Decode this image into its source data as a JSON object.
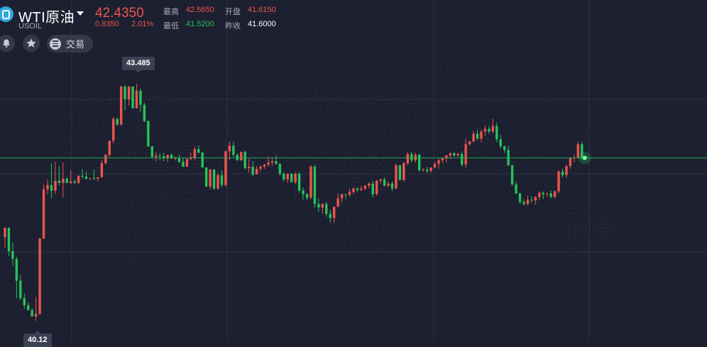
{
  "header": {
    "name": "WTI原油",
    "symbol": "USOIL",
    "price": "42.4350",
    "change": "0.8350",
    "change_pct": "2.01%",
    "high_label": "最高",
    "high_value": "42.5650",
    "open_label": "开盘",
    "open_value": "41.6150",
    "low_label": "最低",
    "low_value": "41.5200",
    "prev_close_label": "昨收",
    "prev_close_value": "41.6000"
  },
  "toolbar": {
    "alert_icon": "bell-icon",
    "favorite_icon": "star-icon",
    "trade_icon": "menu-icon",
    "trade_label": "交易"
  },
  "chart_data": {
    "type": "candlestick",
    "high_marker": "43.485",
    "low_marker": "40.12",
    "current_price_line": 42.435,
    "colors": {
      "up": "#ef5350",
      "down": "#26c35a",
      "grid": "#2c3244",
      "price_line": "#26c35a"
    },
    "candles": [
      [
        41.31,
        41.45,
        41.16,
        41.44
      ],
      [
        41.44,
        41.45,
        41.04,
        41.11
      ],
      [
        41.11,
        41.24,
        40.9,
        41.0
      ],
      [
        41.0,
        41.03,
        40.44,
        40.69
      ],
      [
        40.69,
        40.77,
        40.42,
        40.44
      ],
      [
        40.44,
        40.51,
        40.29,
        40.34
      ],
      [
        40.34,
        40.38,
        40.27,
        40.27
      ],
      [
        40.27,
        40.3,
        40.18,
        40.18
      ],
      [
        40.18,
        40.46,
        40.12,
        40.22
      ],
      [
        40.22,
        41.3,
        40.2,
        41.29
      ],
      [
        41.29,
        42.06,
        41.28,
        41.99
      ],
      [
        41.99,
        42.13,
        41.92,
        42.05
      ],
      [
        42.05,
        42.36,
        41.86,
        41.97
      ],
      [
        41.97,
        42.38,
        41.92,
        42.11
      ],
      [
        42.11,
        42.32,
        42.04,
        42.08
      ],
      [
        42.08,
        42.37,
        41.87,
        42.14
      ],
      [
        42.14,
        42.16,
        42.08,
        42.08
      ],
      [
        42.08,
        42.26,
        42.06,
        42.1
      ],
      [
        42.1,
        42.13,
        42.07,
        42.08
      ],
      [
        42.08,
        42.19,
        42.06,
        42.18
      ],
      [
        42.18,
        42.28,
        42.14,
        42.17
      ],
      [
        42.17,
        42.24,
        42.13,
        42.14
      ],
      [
        42.14,
        42.15,
        42.12,
        42.15
      ],
      [
        42.15,
        42.27,
        42.12,
        42.14
      ],
      [
        42.14,
        42.16,
        42.1,
        42.16
      ],
      [
        42.16,
        42.4,
        42.16,
        42.36
      ],
      [
        42.36,
        42.49,
        42.34,
        42.48
      ],
      [
        42.48,
        42.68,
        42.45,
        42.68
      ],
      [
        42.68,
        43.02,
        42.64,
        42.99
      ],
      [
        42.99,
        43.01,
        42.89,
        42.91
      ],
      [
        42.91,
        43.46,
        42.89,
        43.45
      ],
      [
        43.45,
        43.47,
        43.11,
        43.27
      ],
      [
        43.27,
        43.46,
        43.18,
        43.45
      ],
      [
        43.45,
        43.45,
        43.14,
        43.14
      ],
      [
        43.14,
        43.49,
        43.15,
        43.39
      ],
      [
        43.39,
        43.42,
        43.09,
        43.19
      ],
      [
        43.19,
        43.22,
        42.94,
        42.96
      ],
      [
        42.96,
        42.97,
        42.59,
        42.6
      ],
      [
        42.6,
        42.6,
        42.43,
        42.45
      ],
      [
        42.45,
        42.52,
        42.38,
        42.47
      ],
      [
        42.47,
        42.5,
        42.4,
        42.46
      ],
      [
        42.46,
        42.51,
        42.39,
        42.43
      ],
      [
        42.43,
        42.48,
        42.37,
        42.48
      ],
      [
        42.48,
        42.5,
        42.42,
        42.43
      ],
      [
        42.43,
        42.45,
        42.4,
        42.43
      ],
      [
        42.43,
        42.48,
        42.36,
        42.38
      ],
      [
        42.38,
        42.44,
        42.31,
        42.31
      ],
      [
        42.31,
        42.43,
        42.31,
        42.42
      ],
      [
        42.42,
        42.51,
        42.4,
        42.44
      ],
      [
        42.44,
        42.59,
        42.4,
        42.56
      ],
      [
        42.56,
        42.61,
        42.5,
        42.51
      ],
      [
        42.51,
        42.52,
        42.29,
        42.3
      ],
      [
        42.3,
        42.3,
        42.02,
        42.03
      ],
      [
        42.03,
        42.28,
        41.99,
        42.27
      ],
      [
        42.27,
        42.28,
        41.98,
        42.0
      ],
      [
        42.0,
        42.22,
        41.98,
        42.19
      ],
      [
        42.19,
        42.26,
        42.02,
        42.05
      ],
      [
        42.05,
        42.54,
        42.03,
        42.53
      ],
      [
        42.53,
        42.67,
        42.4,
        42.61
      ],
      [
        42.61,
        42.67,
        42.45,
        42.48
      ],
      [
        42.48,
        42.5,
        42.4,
        42.4
      ],
      [
        42.4,
        42.53,
        42.42,
        42.52
      ],
      [
        42.52,
        42.54,
        42.27,
        42.29
      ],
      [
        42.29,
        42.42,
        42.23,
        42.31
      ],
      [
        42.31,
        42.39,
        42.17,
        42.2
      ],
      [
        42.2,
        42.32,
        42.21,
        42.28
      ],
      [
        42.28,
        42.33,
        42.24,
        42.31
      ],
      [
        42.31,
        42.35,
        42.28,
        42.34
      ],
      [
        42.34,
        42.45,
        42.31,
        42.37
      ],
      [
        42.37,
        42.43,
        42.32,
        42.39
      ],
      [
        42.39,
        42.47,
        42.34,
        42.35
      ],
      [
        42.35,
        42.36,
        42.18,
        42.21
      ],
      [
        42.21,
        42.23,
        42.1,
        42.13
      ],
      [
        42.13,
        42.21,
        42.08,
        42.21
      ],
      [
        42.21,
        42.22,
        42.09,
        42.09
      ],
      [
        42.09,
        42.23,
        42.06,
        42.21
      ],
      [
        42.21,
        42.23,
        41.94,
        41.97
      ],
      [
        41.97,
        42.01,
        41.84,
        41.92
      ],
      [
        41.92,
        41.94,
        41.84,
        41.87
      ],
      [
        41.87,
        42.33,
        41.85,
        42.31
      ],
      [
        42.31,
        42.34,
        41.73,
        41.78
      ],
      [
        41.78,
        41.86,
        41.67,
        41.73
      ],
      [
        41.73,
        41.79,
        41.64,
        41.78
      ],
      [
        41.78,
        41.81,
        41.6,
        41.64
      ],
      [
        41.64,
        41.7,
        41.52,
        41.58
      ],
      [
        41.58,
        41.75,
        41.51,
        41.74
      ],
      [
        41.74,
        41.93,
        41.74,
        41.86
      ],
      [
        41.86,
        41.92,
        41.8,
        41.92
      ],
      [
        41.92,
        41.92,
        41.85,
        41.91
      ],
      [
        41.91,
        42.0,
        41.88,
        41.95
      ],
      [
        41.95,
        42.02,
        41.92,
        42.0
      ],
      [
        42.0,
        42.02,
        41.95,
        41.98
      ],
      [
        41.98,
        42.04,
        41.96,
        42.0
      ],
      [
        42.0,
        42.05,
        41.98,
        42.04
      ],
      [
        42.04,
        42.09,
        42.0,
        42.07
      ],
      [
        42.07,
        42.11,
        41.87,
        41.92
      ],
      [
        41.92,
        42.12,
        41.9,
        42.11
      ],
      [
        42.11,
        42.14,
        42.07,
        42.13
      ],
      [
        42.13,
        42.16,
        42.03,
        42.04
      ],
      [
        42.04,
        42.1,
        42.02,
        42.07
      ],
      [
        42.07,
        42.1,
        41.96,
        42.0
      ],
      [
        42.0,
        42.35,
        41.99,
        42.33
      ],
      [
        42.33,
        42.34,
        42.12,
        42.12
      ],
      [
        42.12,
        42.38,
        42.1,
        42.36
      ],
      [
        42.36,
        42.52,
        42.33,
        42.49
      ],
      [
        42.49,
        42.52,
        42.37,
        42.4
      ],
      [
        42.4,
        42.51,
        42.37,
        42.48
      ],
      [
        42.48,
        42.49,
        42.24,
        42.26
      ],
      [
        42.26,
        42.29,
        42.24,
        42.27
      ],
      [
        42.27,
        42.31,
        42.22,
        42.25
      ],
      [
        42.25,
        42.3,
        42.23,
        42.3
      ],
      [
        42.3,
        42.38,
        42.29,
        42.35
      ],
      [
        42.35,
        42.43,
        42.28,
        42.4
      ],
      [
        42.4,
        42.44,
        42.36,
        42.43
      ],
      [
        42.43,
        42.48,
        42.37,
        42.47
      ],
      [
        42.47,
        42.52,
        42.42,
        42.5
      ],
      [
        42.5,
        42.52,
        42.45,
        42.47
      ],
      [
        42.47,
        42.51,
        42.45,
        42.49
      ],
      [
        42.49,
        42.53,
        42.31,
        42.34
      ],
      [
        42.34,
        42.71,
        42.3,
        42.63
      ],
      [
        42.63,
        42.68,
        42.61,
        42.67
      ],
      [
        42.67,
        42.82,
        42.66,
        42.78
      ],
      [
        42.78,
        42.84,
        42.69,
        42.71
      ],
      [
        42.71,
        42.84,
        42.66,
        42.81
      ],
      [
        42.81,
        42.9,
        42.75,
        42.85
      ],
      [
        42.85,
        42.89,
        42.78,
        42.81
      ],
      [
        42.81,
        42.99,
        42.78,
        42.89
      ],
      [
        42.89,
        42.94,
        42.66,
        42.7
      ],
      [
        42.7,
        42.77,
        42.57,
        42.6
      ],
      [
        42.6,
        42.61,
        42.51,
        42.55
      ],
      [
        42.55,
        42.61,
        42.32,
        42.33
      ],
      [
        42.33,
        42.34,
        42.04,
        42.06
      ],
      [
        42.06,
        42.1,
        41.92,
        41.93
      ],
      [
        41.93,
        41.94,
        41.78,
        41.81
      ],
      [
        41.81,
        41.85,
        41.76,
        41.78
      ],
      [
        41.78,
        41.9,
        41.76,
        41.84
      ],
      [
        41.84,
        41.89,
        41.8,
        41.83
      ],
      [
        41.83,
        41.89,
        41.77,
        41.88
      ],
      [
        41.88,
        41.96,
        41.84,
        41.94
      ],
      [
        41.94,
        41.96,
        41.85,
        41.92
      ],
      [
        41.92,
        41.94,
        41.88,
        41.93
      ],
      [
        41.93,
        41.97,
        41.86,
        41.88
      ],
      [
        41.88,
        41.97,
        41.86,
        41.96
      ],
      [
        41.96,
        42.26,
        41.93,
        42.24
      ],
      [
        42.24,
        42.28,
        42.16,
        42.19
      ],
      [
        42.19,
        42.34,
        42.15,
        42.32
      ],
      [
        42.32,
        42.45,
        42.28,
        42.43
      ],
      [
        42.43,
        42.48,
        42.37,
        42.44
      ],
      [
        42.44,
        42.67,
        42.43,
        42.63
      ],
      [
        42.63,
        42.66,
        42.41,
        42.44
      ]
    ]
  }
}
